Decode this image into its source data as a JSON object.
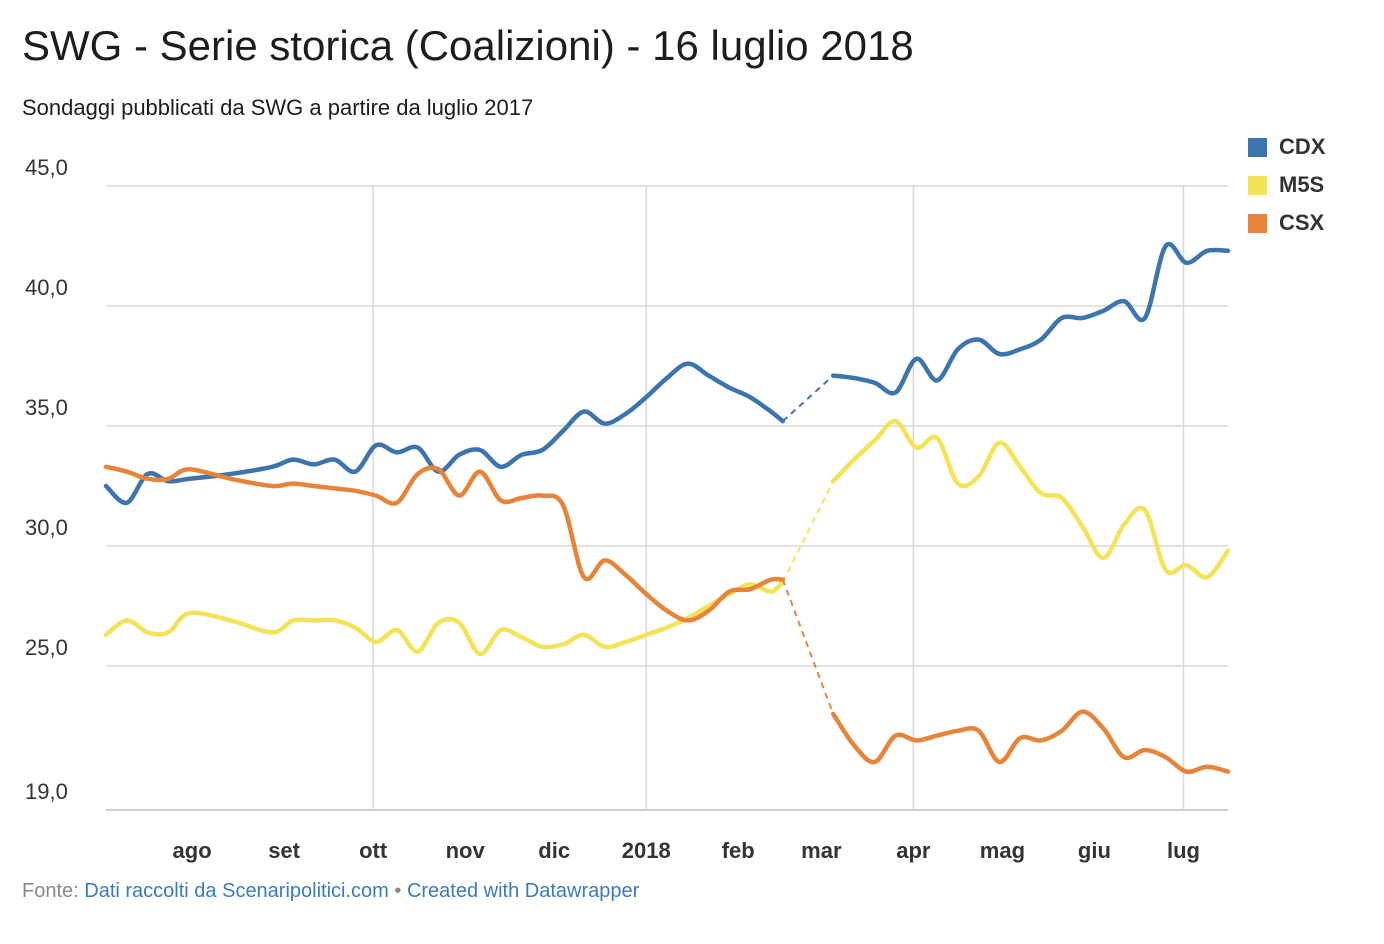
{
  "chart_data": {
    "type": "line",
    "title": "SWG - Serie storica (Coalizioni) - 16 luglio 2018",
    "subtitle": "Sondaggi pubblicati da SWG a partire da luglio 2017",
    "yticks": [
      {
        "value": 45,
        "label": "45,0"
      },
      {
        "value": 40,
        "label": "40,0"
      },
      {
        "value": 35,
        "label": "35,0"
      },
      {
        "value": 30,
        "label": "30,0"
      },
      {
        "value": 25,
        "label": "25,0"
      },
      {
        "value": 19,
        "label": "19,0"
      }
    ],
    "ylim": [
      19,
      45
    ],
    "xlim": [
      "2017-07-03",
      "2018-07-16"
    ],
    "xticks": [
      {
        "date": "2017-08-01",
        "label": "ago",
        "grid": false
      },
      {
        "date": "2017-09-01",
        "label": "set",
        "grid": false
      },
      {
        "date": "2017-10-01",
        "label": "ott",
        "grid": true
      },
      {
        "date": "2017-11-01",
        "label": "nov",
        "grid": false
      },
      {
        "date": "2017-12-01",
        "label": "dic",
        "grid": false
      },
      {
        "date": "2018-01-01",
        "label": "2018",
        "grid": true
      },
      {
        "date": "2018-02-01",
        "label": "feb",
        "grid": false
      },
      {
        "date": "2018-03-01",
        "label": "mar",
        "grid": false
      },
      {
        "date": "2018-04-01",
        "label": "apr",
        "grid": true
      },
      {
        "date": "2018-05-01",
        "label": "mag",
        "grid": false
      },
      {
        "date": "2018-06-01",
        "label": "giu",
        "grid": false
      },
      {
        "date": "2018-07-01",
        "label": "lug",
        "grid": true
      }
    ],
    "gap": {
      "start": "2018-02-16",
      "end": "2018-03-05"
    },
    "series": [
      {
        "name": "CDX",
        "color": "#3c74ad",
        "points": [
          [
            "2017-07-03",
            32.5
          ],
          [
            "2017-07-10",
            31.8
          ],
          [
            "2017-07-17",
            33.0
          ],
          [
            "2017-07-24",
            32.7
          ],
          [
            "2017-07-31",
            32.8
          ],
          [
            "2017-08-14",
            33.0
          ],
          [
            "2017-08-28",
            33.3
          ],
          [
            "2017-09-04",
            33.6
          ],
          [
            "2017-09-11",
            33.4
          ],
          [
            "2017-09-18",
            33.6
          ],
          [
            "2017-09-25",
            33.1
          ],
          [
            "2017-10-02",
            34.2
          ],
          [
            "2017-10-09",
            33.9
          ],
          [
            "2017-10-16",
            34.1
          ],
          [
            "2017-10-23",
            33.1
          ],
          [
            "2017-10-30",
            33.8
          ],
          [
            "2017-11-06",
            34.0
          ],
          [
            "2017-11-13",
            33.3
          ],
          [
            "2017-11-20",
            33.8
          ],
          [
            "2017-11-27",
            34.0
          ],
          [
            "2017-12-04",
            34.8
          ],
          [
            "2017-12-11",
            35.6
          ],
          [
            "2017-12-18",
            35.1
          ],
          [
            "2017-12-25",
            35.5
          ],
          [
            "2018-01-01",
            36.2
          ],
          [
            "2018-01-08",
            37.0
          ],
          [
            "2018-01-15",
            37.6
          ],
          [
            "2018-01-22",
            37.1
          ],
          [
            "2018-01-29",
            36.6
          ],
          [
            "2018-02-05",
            36.2
          ],
          [
            "2018-02-12",
            35.6
          ],
          [
            "2018-02-16",
            35.2
          ],
          [
            "2018-03-05",
            37.1
          ],
          [
            "2018-03-12",
            37.0
          ],
          [
            "2018-03-19",
            36.8
          ],
          [
            "2018-03-26",
            36.4
          ],
          [
            "2018-04-02",
            37.8
          ],
          [
            "2018-04-09",
            36.9
          ],
          [
            "2018-04-16",
            38.2
          ],
          [
            "2018-04-23",
            38.6
          ],
          [
            "2018-04-30",
            38.0
          ],
          [
            "2018-05-07",
            38.2
          ],
          [
            "2018-05-14",
            38.6
          ],
          [
            "2018-05-21",
            39.5
          ],
          [
            "2018-05-28",
            39.5
          ],
          [
            "2018-06-04",
            39.8
          ],
          [
            "2018-06-11",
            40.2
          ],
          [
            "2018-06-18",
            39.5
          ],
          [
            "2018-06-25",
            42.5
          ],
          [
            "2018-07-02",
            41.8
          ],
          [
            "2018-07-09",
            42.3
          ],
          [
            "2018-07-16",
            42.3
          ]
        ]
      },
      {
        "name": "M5S",
        "color": "#f5e357",
        "points": [
          [
            "2017-07-03",
            26.3
          ],
          [
            "2017-07-10",
            26.9
          ],
          [
            "2017-07-17",
            26.4
          ],
          [
            "2017-07-24",
            26.4
          ],
          [
            "2017-07-31",
            27.2
          ],
          [
            "2017-08-14",
            26.9
          ],
          [
            "2017-08-28",
            26.4
          ],
          [
            "2017-09-04",
            26.9
          ],
          [
            "2017-09-11",
            26.9
          ],
          [
            "2017-09-18",
            26.9
          ],
          [
            "2017-09-25",
            26.6
          ],
          [
            "2017-10-02",
            26.0
          ],
          [
            "2017-10-09",
            26.5
          ],
          [
            "2017-10-16",
            25.6
          ],
          [
            "2017-10-23",
            26.8
          ],
          [
            "2017-10-30",
            26.8
          ],
          [
            "2017-11-06",
            25.5
          ],
          [
            "2017-11-13",
            26.5
          ],
          [
            "2017-11-20",
            26.2
          ],
          [
            "2017-11-27",
            25.8
          ],
          [
            "2017-12-04",
            25.9
          ],
          [
            "2017-12-11",
            26.3
          ],
          [
            "2017-12-18",
            25.8
          ],
          [
            "2017-12-25",
            26.0
          ],
          [
            "2018-01-01",
            26.3
          ],
          [
            "2018-01-08",
            26.6
          ],
          [
            "2018-01-15",
            27.0
          ],
          [
            "2018-01-22",
            27.5
          ],
          [
            "2018-01-29",
            28.0
          ],
          [
            "2018-02-05",
            28.4
          ],
          [
            "2018-02-12",
            28.1
          ],
          [
            "2018-02-16",
            28.5
          ],
          [
            "2018-03-05",
            32.7
          ],
          [
            "2018-03-12",
            33.6
          ],
          [
            "2018-03-19",
            34.4
          ],
          [
            "2018-03-26",
            35.2
          ],
          [
            "2018-04-02",
            34.1
          ],
          [
            "2018-04-09",
            34.5
          ],
          [
            "2018-04-16",
            32.6
          ],
          [
            "2018-04-23",
            32.9
          ],
          [
            "2018-04-30",
            34.3
          ],
          [
            "2018-05-07",
            33.3
          ],
          [
            "2018-05-14",
            32.2
          ],
          [
            "2018-05-21",
            32.0
          ],
          [
            "2018-05-28",
            30.8
          ],
          [
            "2018-06-04",
            29.5
          ],
          [
            "2018-06-11",
            30.9
          ],
          [
            "2018-06-18",
            31.5
          ],
          [
            "2018-06-25",
            29.0
          ],
          [
            "2018-07-02",
            29.2
          ],
          [
            "2018-07-09",
            28.7
          ],
          [
            "2018-07-16",
            29.8
          ]
        ]
      },
      {
        "name": "CSX",
        "color": "#e8843a",
        "points": [
          [
            "2017-07-03",
            33.3
          ],
          [
            "2017-07-10",
            33.1
          ],
          [
            "2017-07-17",
            32.8
          ],
          [
            "2017-07-24",
            32.8
          ],
          [
            "2017-07-31",
            33.2
          ],
          [
            "2017-08-14",
            32.8
          ],
          [
            "2017-08-28",
            32.5
          ],
          [
            "2017-09-04",
            32.6
          ],
          [
            "2017-09-11",
            32.5
          ],
          [
            "2017-09-18",
            32.4
          ],
          [
            "2017-09-25",
            32.3
          ],
          [
            "2017-10-02",
            32.1
          ],
          [
            "2017-10-09",
            31.8
          ],
          [
            "2017-10-16",
            33.0
          ],
          [
            "2017-10-23",
            33.2
          ],
          [
            "2017-10-30",
            32.1
          ],
          [
            "2017-11-06",
            33.1
          ],
          [
            "2017-11-13",
            31.9
          ],
          [
            "2017-11-20",
            32.0
          ],
          [
            "2017-11-27",
            32.1
          ],
          [
            "2017-12-04",
            31.7
          ],
          [
            "2017-12-11",
            28.7
          ],
          [
            "2017-12-18",
            29.4
          ],
          [
            "2017-12-25",
            28.8
          ],
          [
            "2018-01-01",
            28.0
          ],
          [
            "2018-01-08",
            27.3
          ],
          [
            "2018-01-15",
            26.9
          ],
          [
            "2018-01-22",
            27.3
          ],
          [
            "2018-01-29",
            28.1
          ],
          [
            "2018-02-05",
            28.2
          ],
          [
            "2018-02-12",
            28.6
          ],
          [
            "2018-02-16",
            28.6
          ],
          [
            "2018-03-05",
            23.0
          ],
          [
            "2018-03-12",
            21.7
          ],
          [
            "2018-03-19",
            21.0
          ],
          [
            "2018-03-26",
            22.1
          ],
          [
            "2018-04-02",
            21.9
          ],
          [
            "2018-04-09",
            22.1
          ],
          [
            "2018-04-16",
            22.3
          ],
          [
            "2018-04-23",
            22.3
          ],
          [
            "2018-04-30",
            21.0
          ],
          [
            "2018-05-07",
            22.0
          ],
          [
            "2018-05-14",
            21.9
          ],
          [
            "2018-05-21",
            22.3
          ],
          [
            "2018-05-28",
            23.1
          ],
          [
            "2018-06-04",
            22.4
          ],
          [
            "2018-06-11",
            21.2
          ],
          [
            "2018-06-18",
            21.5
          ],
          [
            "2018-06-25",
            21.2
          ],
          [
            "2018-07-02",
            20.6
          ],
          [
            "2018-07-09",
            20.8
          ],
          [
            "2018-07-16",
            20.6
          ]
        ]
      }
    ]
  },
  "footer": {
    "prefix": "Fonte: ",
    "source_link": "Dati raccolti da Scenaripolitici.com",
    "separator": " • ",
    "credit_link": "Created with Datawrapper"
  }
}
